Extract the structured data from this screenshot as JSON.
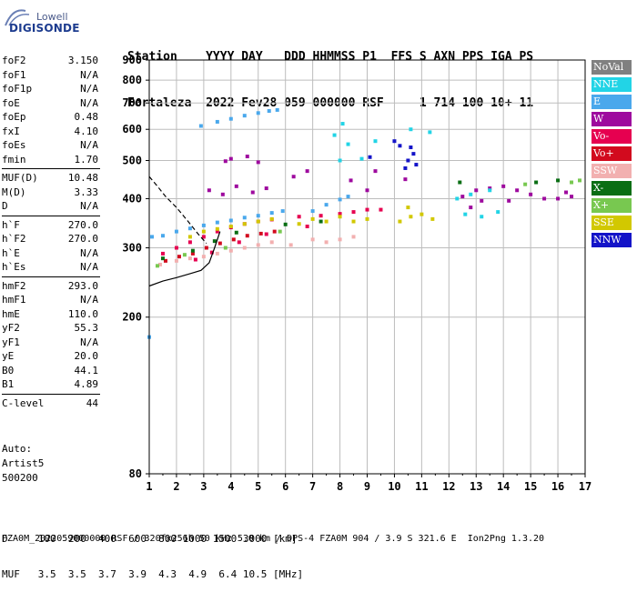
{
  "logo": {
    "top": "Lowell",
    "bottom": "DIGISONDE"
  },
  "header": {
    "line1": "Station    YYYY DAY   DDD HHMMSS P1  FFS S AXN PPS IGA PS",
    "line2": "Fortaleza  2022 Fev28 059 000000 RSF     1 714 100 10+ 11"
  },
  "params_groups": [
    [
      {
        "label": "foF2",
        "value": "3.150"
      },
      {
        "label": "foF1",
        "value": "N/A"
      },
      {
        "label": "foF1p",
        "value": "N/A"
      },
      {
        "label": "foE",
        "value": "N/A"
      },
      {
        "label": "foEp",
        "value": "0.48"
      },
      {
        "label": "fxI",
        "value": "4.10"
      },
      {
        "label": "foEs",
        "value": "N/A"
      },
      {
        "label": "fmin",
        "value": "1.70"
      }
    ],
    [
      {
        "label": "MUF(D)",
        "value": "10.48"
      },
      {
        "label": "M(D)",
        "value": "3.33"
      },
      {
        "label": "D",
        "value": "N/A"
      }
    ],
    [
      {
        "label": "h`F",
        "value": "270.0"
      },
      {
        "label": "h`F2",
        "value": "270.0"
      },
      {
        "label": "h`E",
        "value": "N/A"
      },
      {
        "label": "h`Es",
        "value": "N/A"
      }
    ],
    [
      {
        "label": "hmF2",
        "value": "293.0"
      },
      {
        "label": "hmF1",
        "value": "N/A"
      },
      {
        "label": "hmE",
        "value": "110.0"
      },
      {
        "label": "yF2",
        "value": "55.3"
      },
      {
        "label": "yF1",
        "value": "N/A"
      },
      {
        "label": "yE",
        "value": "20.0"
      },
      {
        "label": "B0",
        "value": "44.1"
      },
      {
        "label": "B1",
        "value": "4.89"
      }
    ],
    [
      {
        "label": "C-level",
        "value": "44"
      }
    ]
  ],
  "auto": {
    "line1": "Auto:",
    "line2": "Artist5",
    "line3": "500200"
  },
  "legend": [
    {
      "label": "NoVal",
      "color": "#808080"
    },
    {
      "label": "NNE",
      "color": "#22d4e6"
    },
    {
      "label": "E",
      "color": "#4aa8ec"
    },
    {
      "label": "W",
      "color": "#9e0a9e"
    },
    {
      "label": "Vo-",
      "color": "#e60050"
    },
    {
      "label": "Vo+",
      "color": "#d20a1e"
    },
    {
      "label": "SSW",
      "color": "#f2b0b0"
    },
    {
      "label": "X-",
      "color": "#0a6e14"
    },
    {
      "label": "X+",
      "color": "#78c850"
    },
    {
      "label": "SSE",
      "color": "#d2c800"
    },
    {
      "label": "NNW",
      "color": "#1414c8"
    }
  ],
  "chart_data": {
    "type": "scatter",
    "title": "",
    "xlabel": "",
    "ylabel": "",
    "xlim": [
      1,
      17
    ],
    "ylim": [
      80,
      900
    ],
    "y_scale": "log",
    "x_ticks": [
      "1",
      "2",
      "3",
      "4",
      "5",
      "6",
      "7",
      "8",
      "9",
      "10",
      "11",
      "12",
      "13",
      "14",
      "15",
      "16",
      "17"
    ],
    "y_ticks": [
      "80",
      "200",
      "300",
      "400",
      "500",
      "600",
      "700",
      "800",
      "900"
    ],
    "grid": true,
    "legend_position": "right",
    "series": [
      {
        "name": "E",
        "color": "#4aa8ec",
        "points": [
          [
            1.1,
            320
          ],
          [
            1.5,
            322
          ],
          [
            2,
            330
          ],
          [
            2.5,
            336
          ],
          [
            3,
            342
          ],
          [
            3.5,
            348
          ],
          [
            4,
            352
          ],
          [
            4.5,
            358
          ],
          [
            5,
            362
          ],
          [
            5.5,
            368
          ],
          [
            5.9,
            372
          ],
          [
            2.9,
            612
          ],
          [
            3.5,
            627
          ],
          [
            4,
            638
          ],
          [
            4.5,
            650
          ],
          [
            5,
            660
          ],
          [
            5.4,
            668
          ],
          [
            5.7,
            672
          ],
          [
            7,
            372
          ],
          [
            7.5,
            386
          ],
          [
            8,
            398
          ],
          [
            8.3,
            405
          ],
          [
            1,
            178
          ]
        ]
      },
      {
        "name": "W",
        "color": "#9e0a9e",
        "points": [
          [
            3.2,
            420
          ],
          [
            3.7,
            410
          ],
          [
            4.2,
            430
          ],
          [
            4.8,
            415
          ],
          [
            5.3,
            425
          ],
          [
            4,
            505
          ],
          [
            4.6,
            512
          ],
          [
            3.8,
            498
          ],
          [
            5,
            495
          ],
          [
            6.3,
            455
          ],
          [
            6.8,
            470
          ],
          [
            8.4,
            445
          ],
          [
            9,
            420
          ],
          [
            9.3,
            470
          ],
          [
            10.4,
            448
          ],
          [
            12.5,
            405
          ],
          [
            13,
            420
          ],
          [
            13.5,
            425
          ],
          [
            14,
            430
          ],
          [
            14.5,
            420
          ],
          [
            15,
            410
          ],
          [
            15.5,
            400
          ],
          [
            16,
            400
          ],
          [
            16.5,
            405
          ],
          [
            13.2,
            395
          ],
          [
            14.2,
            395
          ],
          [
            12.8,
            380
          ],
          [
            16.3,
            415
          ]
        ]
      },
      {
        "name": "Vo-",
        "color": "#e60050",
        "points": [
          [
            1.5,
            290
          ],
          [
            2,
            300
          ],
          [
            2.5,
            310
          ],
          [
            3,
            320
          ],
          [
            3.5,
            330
          ],
          [
            4,
            338
          ],
          [
            4.5,
            345
          ],
          [
            5,
            350
          ],
          [
            5.5,
            354
          ],
          [
            6.5,
            360
          ],
          [
            7.3,
            362
          ],
          [
            8,
            366
          ],
          [
            8.5,
            370
          ],
          [
            9,
            375
          ],
          [
            9.5,
            375
          ],
          [
            2.7,
            280
          ],
          [
            3.3,
            292
          ],
          [
            4.3,
            310
          ],
          [
            5.3,
            325
          ],
          [
            6.8,
            340
          ]
        ]
      },
      {
        "name": "Vo+",
        "color": "#d20a1e",
        "points": [
          [
            1.6,
            278
          ],
          [
            2.1,
            285
          ],
          [
            2.6,
            290
          ],
          [
            3.1,
            300
          ],
          [
            3.6,
            308
          ],
          [
            4.1,
            315
          ],
          [
            4.6,
            322
          ],
          [
            5.1,
            326
          ],
          [
            5.6,
            330
          ]
        ]
      },
      {
        "name": "SSW",
        "color": "#f2b0b0",
        "points": [
          [
            1.4,
            272
          ],
          [
            2,
            278
          ],
          [
            2.5,
            282
          ],
          [
            3,
            285
          ],
          [
            3.5,
            290
          ],
          [
            4,
            295
          ],
          [
            4.5,
            300
          ],
          [
            5,
            305
          ],
          [
            5.5,
            310
          ],
          [
            6.2,
            305
          ],
          [
            7,
            315
          ],
          [
            7.5,
            310
          ],
          [
            8,
            315
          ],
          [
            8.5,
            320
          ]
        ]
      },
      {
        "name": "SSE",
        "color": "#d2c800",
        "points": [
          [
            2.5,
            320
          ],
          [
            3,
            330
          ],
          [
            3.5,
            335
          ],
          [
            4,
            340
          ],
          [
            4.5,
            345
          ],
          [
            5,
            350
          ],
          [
            5.5,
            355
          ],
          [
            6.5,
            345
          ],
          [
            7,
            355
          ],
          [
            7.5,
            350
          ],
          [
            8,
            360
          ],
          [
            8.5,
            350
          ],
          [
            9,
            355
          ],
          [
            10.2,
            350
          ],
          [
            10.6,
            360
          ],
          [
            11,
            365
          ],
          [
            11.4,
            355
          ],
          [
            10.5,
            380
          ]
        ]
      },
      {
        "name": "NNE",
        "color": "#22d4e6",
        "points": [
          [
            7.8,
            580
          ],
          [
            8.1,
            620
          ],
          [
            8.3,
            550
          ],
          [
            8,
            500
          ],
          [
            8.8,
            505
          ],
          [
            9.3,
            560
          ],
          [
            10.6,
            600
          ],
          [
            11.3,
            590
          ],
          [
            12.6,
            365
          ],
          [
            13.2,
            360
          ],
          [
            13.8,
            370
          ],
          [
            12.3,
            400
          ],
          [
            12.8,
            410
          ],
          [
            13.5,
            420
          ]
        ]
      },
      {
        "name": "NNW",
        "color": "#1414c8",
        "points": [
          [
            10.5,
            500
          ],
          [
            10.7,
            520
          ],
          [
            10.6,
            540
          ],
          [
            10.4,
            478
          ],
          [
            10.8,
            488
          ],
          [
            10,
            560
          ],
          [
            10.2,
            545
          ],
          [
            9.1,
            510
          ]
        ]
      },
      {
        "name": "X-",
        "color": "#0a6e14",
        "points": [
          [
            1.5,
            282
          ],
          [
            2.6,
            295
          ],
          [
            3.4,
            312
          ],
          [
            4.2,
            328
          ],
          [
            12.4,
            440
          ],
          [
            15.2,
            440
          ],
          [
            16,
            445
          ],
          [
            6,
            344
          ],
          [
            7.3,
            350
          ]
        ]
      },
      {
        "name": "X+",
        "color": "#78c850",
        "points": [
          [
            1.3,
            270
          ],
          [
            2.3,
            288
          ],
          [
            3.8,
            300
          ],
          [
            5.8,
            330
          ],
          [
            16.5,
            440
          ],
          [
            16.8,
            445
          ],
          [
            14.8,
            435
          ]
        ]
      },
      {
        "name": "NoVal",
        "color": "#808080",
        "points": []
      }
    ],
    "profile_upper": {
      "color": "#000000",
      "points": [
        [
          1,
          455
        ],
        [
          1.3,
          430
        ],
        [
          1.6,
          405
        ],
        [
          2,
          380
        ],
        [
          2.4,
          352
        ],
        [
          2.8,
          325
        ],
        [
          3.1,
          308
        ]
      ]
    },
    "profile_lower": {
      "color": "#000000",
      "points": [
        [
          1,
          240
        ],
        [
          1.5,
          247
        ],
        [
          2,
          252
        ],
        [
          2.5,
          258
        ],
        [
          2.9,
          263
        ],
        [
          3.2,
          275
        ],
        [
          3.4,
          300
        ],
        [
          3.6,
          330
        ]
      ]
    }
  },
  "d_table": {
    "line1": "D     100  200  400  600  800 1000 1500 3000 [km]",
    "line2": "MUF   3.5  3.5  3.7  3.9  4.3  4.9  6.4 10.5 [MHz]"
  },
  "footer": "FZA0M_2022059000000.RSF / 320fx256h 50 kHz 5.0 km / DPS-4 FZA0M 904 / 3.9 S 321.6 E  Ion2Png 1.3.20"
}
